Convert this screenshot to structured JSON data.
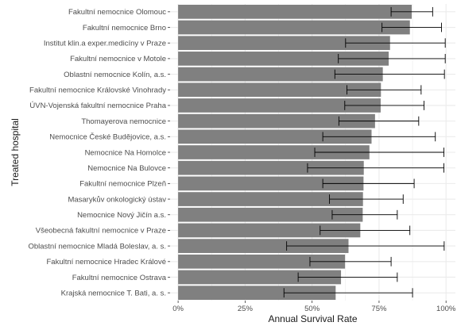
{
  "chart_data": {
    "type": "bar",
    "orientation": "horizontal",
    "xlabel": "Annual Survival Rate",
    "ylabel": "Treated hospital",
    "xlim": [
      -0.03,
      1.035
    ],
    "x_ticks": [
      0,
      0.25,
      0.5,
      0.75,
      1.0
    ],
    "x_tick_labels": [
      "0%",
      "25%",
      "50%",
      "75%",
      "100%"
    ],
    "grid": true,
    "legend": "none",
    "colors": {
      "bar": "#808080",
      "panel": "#ffffff",
      "grid": "#ebebeb",
      "errorbar": "#000000"
    },
    "categories": [
      "Fakultní nemocnice Olomouc",
      "Fakultní nemocnice Brno",
      "Institut klin.a exper.medicíny v Praze",
      "Fakultní nemocnice v Motole",
      "Oblastní nemocnice Kolín, a.s.",
      "Fakultní nemocnice Královské Vinohrady",
      "ÚVN-Vojenská fakultní nemocnice Praha",
      "Thomayerova nemocnice",
      "Nemocnice České Budějovice, a.s.",
      "Nemocnice Na Homolce",
      "Nemocnice Na Bulovce",
      "Fakultní nemocnice Plzeň",
      "Masarykův onkologický ústav",
      "Nemocnice Nový Jičín a.s.",
      "Všeobecná fakultní nemocnice v Praze",
      "Oblastní nemocnice Mladá Boleslav, a. s.",
      "Fakultní nemocnice Hradec Králové",
      "Fakultní nemocnice Ostrava",
      "Krajská nemocnice T. Bati, a. s."
    ],
    "values": [
      0.872,
      0.865,
      0.791,
      0.786,
      0.764,
      0.757,
      0.756,
      0.735,
      0.722,
      0.714,
      0.693,
      0.692,
      0.69,
      0.689,
      0.68,
      0.636,
      0.623,
      0.608,
      0.588
    ],
    "error_low": [
      0.795,
      0.761,
      0.625,
      0.598,
      0.585,
      0.63,
      0.622,
      0.6,
      0.54,
      0.51,
      0.483,
      0.54,
      0.565,
      0.575,
      0.53,
      0.405,
      0.492,
      0.448,
      0.395
    ],
    "error_high": [
      0.95,
      0.983,
      0.997,
      0.997,
      0.994,
      0.907,
      0.918,
      0.898,
      0.96,
      0.992,
      0.992,
      0.881,
      0.84,
      0.818,
      0.865,
      0.993,
      0.795,
      0.818,
      0.875
    ]
  }
}
